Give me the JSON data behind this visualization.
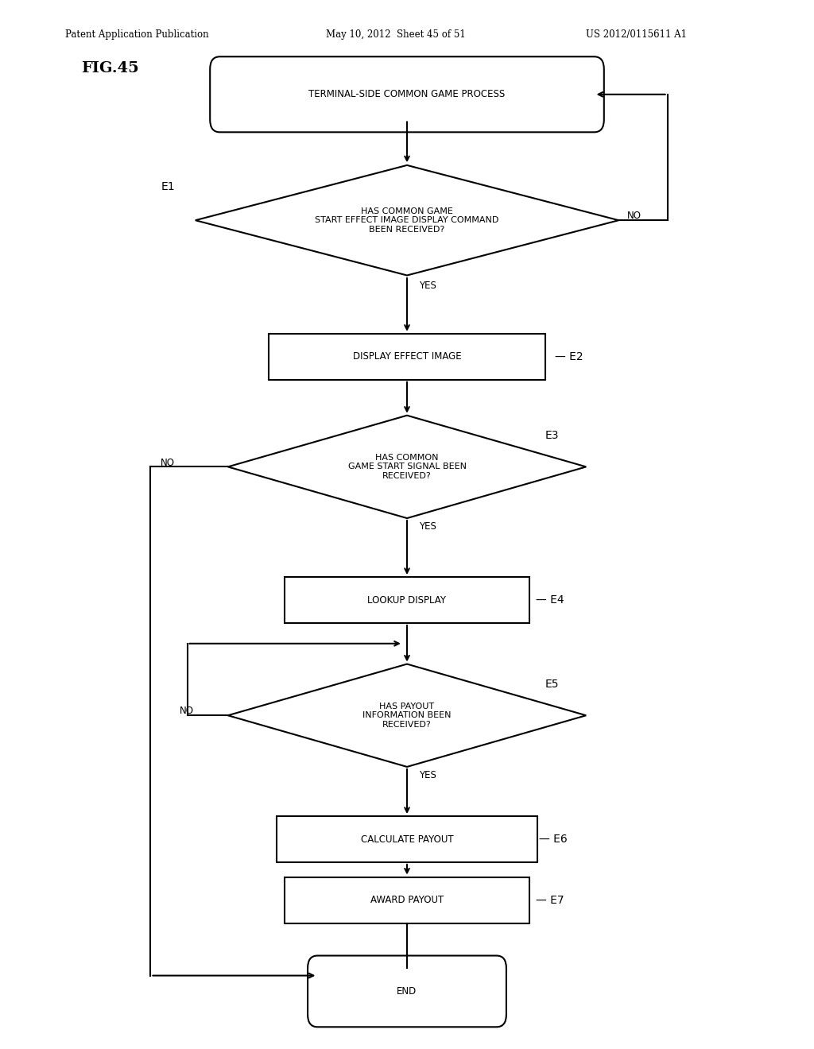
{
  "title_header": "Patent Application Publication",
  "date_header": "May 10, 2012  Sheet 45 of 51",
  "patent_header": "US 2012/0115611 A1",
  "fig_label": "FIG.45",
  "bg_color": "#ffffff",
  "line_color": "#000000",
  "start_label": "TERMINAL-SIDE COMMON GAME PROCESS",
  "e1_label": "HAS COMMON GAME\nSTART EFFECT IMAGE DISPLAY COMMAND\nBEEN RECEIVED?",
  "e2_label": "DISPLAY EFFECT IMAGE",
  "e3_label": "HAS COMMON\nGAME START SIGNAL BEEN\nRECEIVED?",
  "e4_label": "LOOKUP DISPLAY",
  "e5_label": "HAS PAYOUT\nINFORMATION BEEN\nRECEIVED?",
  "e6_label": "CALCULATE PAYOUT",
  "e7_label": "AWARD PAYOUT",
  "end_label": "END"
}
